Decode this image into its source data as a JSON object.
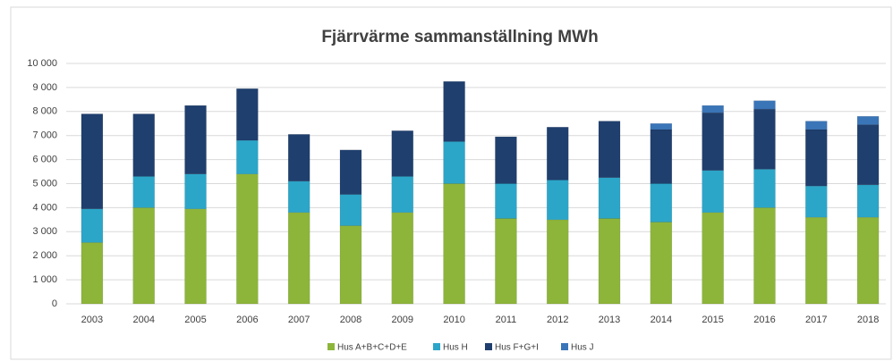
{
  "chart_data": {
    "type": "stacked_bar",
    "title": "Fjärrvärme  sammanställning MWh",
    "categories": [
      "2003",
      "2004",
      "2005",
      "2006",
      "2007",
      "2008",
      "2009",
      "2010",
      "2011",
      "2012",
      "2013",
      "2014",
      "2015",
      "2016",
      "2017",
      "2018"
    ],
    "series": [
      {
        "name": "Hus A+B+C+D+E",
        "color": "#8db53a",
        "values": [
          2550,
          4000,
          3950,
          5400,
          3800,
          3250,
          3800,
          5000,
          3550,
          3500,
          3550,
          3400,
          3800,
          4000,
          3600,
          3600
        ]
      },
      {
        "name": "Hus H",
        "color": "#2ba6c9",
        "values": [
          1400,
          1300,
          1450,
          1400,
          1300,
          1300,
          1500,
          1750,
          1450,
          1650,
          1700,
          1600,
          1750,
          1600,
          1300,
          1350
        ]
      },
      {
        "name": "Hus F+G+I",
        "color": "#1f3f6e",
        "values": [
          3950,
          2600,
          2850,
          2150,
          1950,
          1850,
          1900,
          2500,
          1950,
          2200,
          2350,
          2250,
          2400,
          2500,
          2350,
          2500
        ]
      },
      {
        "name": "Hus J",
        "color": "#3a75b8",
        "values": [
          0,
          0,
          0,
          0,
          0,
          0,
          0,
          0,
          0,
          0,
          0,
          250,
          300,
          350,
          350,
          350
        ]
      }
    ],
    "ylim": [
      0,
      10000
    ],
    "yticks": [
      0,
      {
        "value": 1000,
        "label": "1 000"
      },
      {
        "value": 2000,
        "label": "2 000"
      },
      {
        "value": 3000,
        "label": "3 000"
      },
      {
        "value": 4000,
        "label": "4 000"
      },
      {
        "value": 5000,
        "label": "5 000"
      },
      {
        "value": 6000,
        "label": "6 000"
      },
      {
        "value": 7000,
        "label": "7 000"
      },
      {
        "value": 8000,
        "label": "8 000"
      },
      {
        "value": 9000,
        "label": "9 000"
      },
      {
        "value": 10000,
        "label": "10 000"
      }
    ],
    "grid": true,
    "legend": "bottom"
  }
}
